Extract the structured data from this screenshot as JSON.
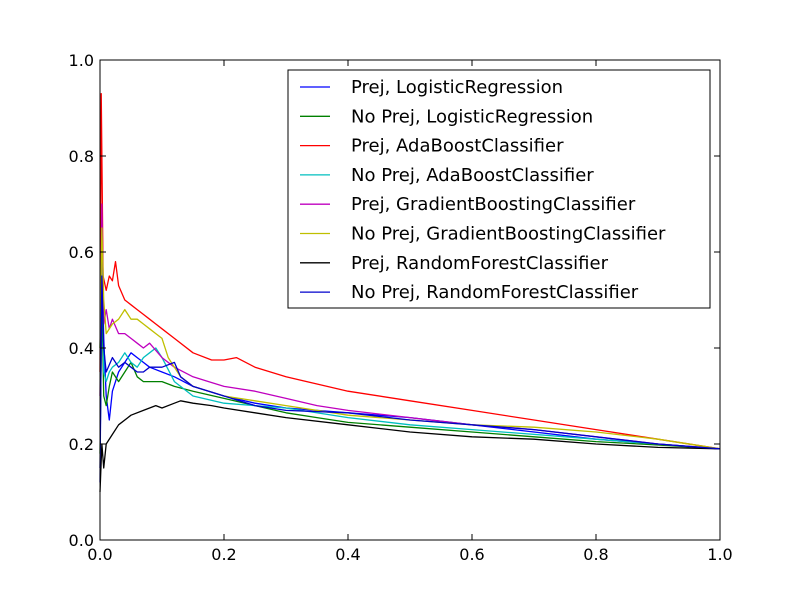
{
  "chart_data": {
    "type": "line",
    "title": "",
    "xlabel": "",
    "ylabel": "",
    "xlim": [
      0,
      1
    ],
    "ylim": [
      0,
      1
    ],
    "grid": false,
    "legend_position": "top-right",
    "xticks": [
      "0.0",
      "0.2",
      "0.4",
      "0.6",
      "0.8",
      "1.0"
    ],
    "yticks": [
      "0.0",
      "0.2",
      "0.4",
      "0.6",
      "0.8",
      "1.0"
    ],
    "series": [
      {
        "name": "Prej, LogisticRegression",
        "color": "#0000ff",
        "points": [
          [
            0,
            0.12
          ],
          [
            0.003,
            0.6
          ],
          [
            0.006,
            0.42
          ],
          [
            0.01,
            0.3
          ],
          [
            0.015,
            0.25
          ],
          [
            0.02,
            0.31
          ],
          [
            0.03,
            0.35
          ],
          [
            0.04,
            0.37
          ],
          [
            0.05,
            0.39
          ],
          [
            0.06,
            0.38
          ],
          [
            0.07,
            0.37
          ],
          [
            0.08,
            0.36
          ],
          [
            0.1,
            0.35
          ],
          [
            0.12,
            0.34
          ],
          [
            0.15,
            0.32
          ],
          [
            0.2,
            0.3
          ],
          [
            0.25,
            0.285
          ],
          [
            0.3,
            0.275
          ],
          [
            0.35,
            0.27
          ],
          [
            0.4,
            0.265
          ],
          [
            0.5,
            0.255
          ],
          [
            0.6,
            0.24
          ],
          [
            0.7,
            0.225
          ],
          [
            0.8,
            0.21
          ],
          [
            0.9,
            0.2
          ],
          [
            1.0,
            0.19
          ]
        ]
      },
      {
        "name": "No Prej, LogisticRegression",
        "color": "#008000",
        "points": [
          [
            0,
            0.18
          ],
          [
            0.003,
            0.5
          ],
          [
            0.006,
            0.3
          ],
          [
            0.01,
            0.28
          ],
          [
            0.015,
            0.32
          ],
          [
            0.02,
            0.35
          ],
          [
            0.03,
            0.33
          ],
          [
            0.04,
            0.35
          ],
          [
            0.05,
            0.37
          ],
          [
            0.06,
            0.34
          ],
          [
            0.07,
            0.33
          ],
          [
            0.08,
            0.33
          ],
          [
            0.1,
            0.33
          ],
          [
            0.12,
            0.32
          ],
          [
            0.15,
            0.31
          ],
          [
            0.2,
            0.295
          ],
          [
            0.25,
            0.28
          ],
          [
            0.3,
            0.265
          ],
          [
            0.35,
            0.255
          ],
          [
            0.4,
            0.245
          ],
          [
            0.5,
            0.235
          ],
          [
            0.6,
            0.225
          ],
          [
            0.7,
            0.215
          ],
          [
            0.8,
            0.205
          ],
          [
            0.9,
            0.198
          ],
          [
            1.0,
            0.19
          ]
        ]
      },
      {
        "name": "Prej, AdaBoostClassifier",
        "color": "#ff0000",
        "points": [
          [
            0,
            0.35
          ],
          [
            0.002,
            0.93
          ],
          [
            0.005,
            0.55
          ],
          [
            0.01,
            0.52
          ],
          [
            0.015,
            0.55
          ],
          [
            0.02,
            0.54
          ],
          [
            0.025,
            0.58
          ],
          [
            0.03,
            0.53
          ],
          [
            0.04,
            0.5
          ],
          [
            0.05,
            0.49
          ],
          [
            0.06,
            0.48
          ],
          [
            0.07,
            0.47
          ],
          [
            0.08,
            0.46
          ],
          [
            0.09,
            0.45
          ],
          [
            0.1,
            0.44
          ],
          [
            0.12,
            0.42
          ],
          [
            0.15,
            0.39
          ],
          [
            0.18,
            0.375
          ],
          [
            0.2,
            0.375
          ],
          [
            0.22,
            0.38
          ],
          [
            0.25,
            0.36
          ],
          [
            0.3,
            0.34
          ],
          [
            0.35,
            0.325
          ],
          [
            0.4,
            0.31
          ],
          [
            0.5,
            0.29
          ],
          [
            0.6,
            0.27
          ],
          [
            0.7,
            0.25
          ],
          [
            0.8,
            0.23
          ],
          [
            0.9,
            0.21
          ],
          [
            1.0,
            0.19
          ]
        ]
      },
      {
        "name": "No Prej, AdaBoostClassifier",
        "color": "#00bfbf",
        "points": [
          [
            0,
            0.4
          ],
          [
            0.003,
            0.62
          ],
          [
            0.006,
            0.35
          ],
          [
            0.01,
            0.33
          ],
          [
            0.015,
            0.35
          ],
          [
            0.02,
            0.36
          ],
          [
            0.03,
            0.37
          ],
          [
            0.04,
            0.39
          ],
          [
            0.05,
            0.37
          ],
          [
            0.06,
            0.36
          ],
          [
            0.07,
            0.38
          ],
          [
            0.08,
            0.39
          ],
          [
            0.09,
            0.4
          ],
          [
            0.1,
            0.38
          ],
          [
            0.12,
            0.33
          ],
          [
            0.15,
            0.3
          ],
          [
            0.2,
            0.285
          ],
          [
            0.25,
            0.28
          ],
          [
            0.3,
            0.275
          ],
          [
            0.4,
            0.255
          ],
          [
            0.5,
            0.24
          ],
          [
            0.6,
            0.23
          ],
          [
            0.7,
            0.22
          ],
          [
            0.8,
            0.21
          ],
          [
            0.9,
            0.2
          ],
          [
            1.0,
            0.19
          ]
        ]
      },
      {
        "name": "Prej, GradientBoostingClassifier",
        "color": "#bf00bf",
        "points": [
          [
            0,
            0.3
          ],
          [
            0.003,
            0.7
          ],
          [
            0.006,
            0.45
          ],
          [
            0.01,
            0.48
          ],
          [
            0.015,
            0.44
          ],
          [
            0.02,
            0.46
          ],
          [
            0.03,
            0.43
          ],
          [
            0.04,
            0.43
          ],
          [
            0.05,
            0.42
          ],
          [
            0.06,
            0.41
          ],
          [
            0.07,
            0.4
          ],
          [
            0.08,
            0.41
          ],
          [
            0.1,
            0.38
          ],
          [
            0.12,
            0.36
          ],
          [
            0.15,
            0.34
          ],
          [
            0.2,
            0.32
          ],
          [
            0.25,
            0.31
          ],
          [
            0.3,
            0.295
          ],
          [
            0.35,
            0.28
          ],
          [
            0.4,
            0.27
          ],
          [
            0.5,
            0.255
          ],
          [
            0.6,
            0.24
          ],
          [
            0.7,
            0.23
          ],
          [
            0.8,
            0.215
          ],
          [
            0.9,
            0.2
          ],
          [
            1.0,
            0.19
          ]
        ]
      },
      {
        "name": "No Prej, GradientBoostingClassifier",
        "color": "#bfbf00",
        "points": [
          [
            0,
            0.4
          ],
          [
            0.003,
            0.65
          ],
          [
            0.006,
            0.5
          ],
          [
            0.01,
            0.43
          ],
          [
            0.02,
            0.45
          ],
          [
            0.03,
            0.46
          ],
          [
            0.04,
            0.48
          ],
          [
            0.05,
            0.46
          ],
          [
            0.06,
            0.46
          ],
          [
            0.07,
            0.45
          ],
          [
            0.08,
            0.44
          ],
          [
            0.09,
            0.43
          ],
          [
            0.1,
            0.42
          ],
          [
            0.11,
            0.38
          ],
          [
            0.13,
            0.34
          ],
          [
            0.15,
            0.32
          ],
          [
            0.2,
            0.3
          ],
          [
            0.25,
            0.29
          ],
          [
            0.3,
            0.28
          ],
          [
            0.4,
            0.26
          ],
          [
            0.5,
            0.25
          ],
          [
            0.6,
            0.24
          ],
          [
            0.7,
            0.235
          ],
          [
            0.8,
            0.225
          ],
          [
            0.9,
            0.21
          ],
          [
            1.0,
            0.19
          ]
        ]
      },
      {
        "name": "Prej, RandomForestClassifier",
        "color": "#000000",
        "points": [
          [
            0,
            0.1
          ],
          [
            0.003,
            0.2
          ],
          [
            0.006,
            0.15
          ],
          [
            0.01,
            0.2
          ],
          [
            0.02,
            0.22
          ],
          [
            0.03,
            0.24
          ],
          [
            0.05,
            0.26
          ],
          [
            0.07,
            0.27
          ],
          [
            0.09,
            0.28
          ],
          [
            0.1,
            0.275
          ],
          [
            0.12,
            0.285
          ],
          [
            0.13,
            0.29
          ],
          [
            0.15,
            0.285
          ],
          [
            0.18,
            0.28
          ],
          [
            0.2,
            0.275
          ],
          [
            0.25,
            0.265
          ],
          [
            0.3,
            0.255
          ],
          [
            0.4,
            0.24
          ],
          [
            0.5,
            0.225
          ],
          [
            0.6,
            0.215
          ],
          [
            0.7,
            0.21
          ],
          [
            0.8,
            0.2
          ],
          [
            0.9,
            0.193
          ],
          [
            1.0,
            0.19
          ]
        ]
      },
      {
        "name": "No Prej, RandomForestClassifier",
        "color": "#0000cc",
        "points": [
          [
            0,
            0.15
          ],
          [
            0.003,
            0.55
          ],
          [
            0.006,
            0.4
          ],
          [
            0.01,
            0.35
          ],
          [
            0.02,
            0.38
          ],
          [
            0.03,
            0.36
          ],
          [
            0.04,
            0.37
          ],
          [
            0.05,
            0.36
          ],
          [
            0.06,
            0.35
          ],
          [
            0.07,
            0.35
          ],
          [
            0.08,
            0.36
          ],
          [
            0.1,
            0.36
          ],
          [
            0.12,
            0.37
          ],
          [
            0.13,
            0.34
          ],
          [
            0.15,
            0.32
          ],
          [
            0.2,
            0.3
          ],
          [
            0.25,
            0.28
          ],
          [
            0.3,
            0.27
          ],
          [
            0.4,
            0.265
          ],
          [
            0.5,
            0.25
          ],
          [
            0.6,
            0.24
          ],
          [
            0.7,
            0.23
          ],
          [
            0.8,
            0.215
          ],
          [
            0.9,
            0.2
          ],
          [
            1.0,
            0.19
          ]
        ]
      }
    ]
  }
}
